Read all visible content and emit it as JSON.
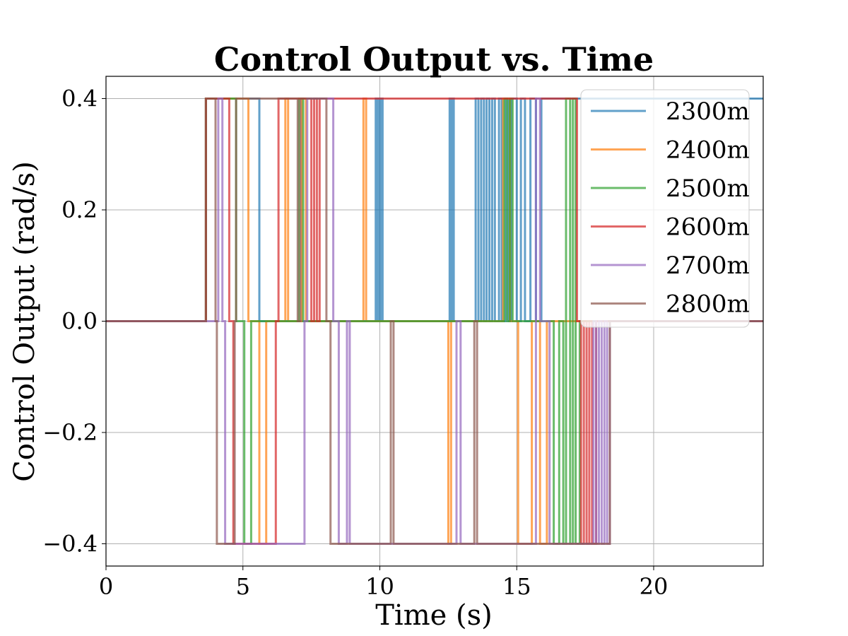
{
  "chart_data": {
    "type": "line",
    "title": "Control Output vs. Time",
    "xlabel": "Time (s)",
    "ylabel": "Control Output (rad/s)",
    "xlim": [
      0,
      24
    ],
    "ylim": [
      -0.44,
      0.44
    ],
    "xticks": [
      0,
      5,
      10,
      15,
      20
    ],
    "xtick_labels": [
      "0",
      "5",
      "10",
      "15",
      "20"
    ],
    "yticks": [
      -0.4,
      -0.2,
      0.0,
      0.2,
      0.4
    ],
    "ytick_labels": [
      "−0.4",
      "−0.2",
      "0.0",
      "0.2",
      "0.4"
    ],
    "grid": true,
    "legend_position": "top-right",
    "series": [
      {
        "name": "2300m",
        "color": "#1f77b4",
        "x": [
          0,
          3.65,
          3.65,
          5.6,
          5.6,
          9.85,
          9.85,
          9.9,
          9.9,
          9.95,
          9.95,
          10.0,
          10.0,
          10.05,
          10.05,
          10.1,
          10.1,
          12.55,
          12.55,
          12.6,
          12.6,
          12.65,
          12.65,
          12.7,
          12.7,
          13.5,
          13.5,
          13.6,
          13.6,
          13.7,
          13.7,
          13.8,
          13.8,
          13.9,
          13.9,
          14.0,
          14.0,
          14.1,
          14.1,
          14.2,
          14.2,
          14.35,
          14.35,
          14.45,
          14.45,
          14.6,
          14.6,
          14.7,
          14.7,
          14.8,
          14.8,
          15.0,
          15.0,
          15.15,
          15.15,
          15.3,
          15.3,
          15.5,
          15.5,
          15.7,
          15.7,
          15.9,
          15.9,
          24
        ],
        "y": [
          0,
          0,
          0.4,
          0.4,
          0,
          0,
          0.4,
          0.4,
          0,
          0,
          0.4,
          0.4,
          0,
          0,
          0.4,
          0.4,
          0,
          0,
          0.4,
          0.4,
          0,
          0,
          0.4,
          0.4,
          0,
          0,
          0.4,
          0.4,
          0,
          0,
          0.4,
          0.4,
          0,
          0,
          0.4,
          0.4,
          0,
          0,
          0.4,
          0.4,
          0,
          0,
          0.4,
          0.4,
          0,
          0,
          0.4,
          0.4,
          0,
          0,
          0.4,
          0.4,
          0,
          0,
          0.4,
          0.4,
          0,
          0,
          0.4,
          0.4,
          0,
          0,
          0.4,
          0.4
        ]
      },
      {
        "name": "2400m",
        "color": "#ff7f0e",
        "x": [
          0,
          3.65,
          3.65,
          5.2,
          5.2,
          5.6,
          5.6,
          5.85,
          5.85,
          6.55,
          6.55,
          6.65,
          6.65,
          7.15,
          7.15,
          7.3,
          7.3,
          9.4,
          9.4,
          9.5,
          9.5,
          12.5,
          12.5,
          12.6,
          12.6,
          14.5,
          14.5,
          14.75,
          14.75,
          15.05,
          15.05,
          15.55,
          15.55,
          15.85,
          15.85,
          16.1,
          16.1,
          16.2,
          16.2,
          24
        ],
        "y": [
          0,
          0,
          0.4,
          0.4,
          0,
          0,
          -0.4,
          -0.4,
          0,
          0,
          0.4,
          0.4,
          0,
          0,
          0.4,
          0.4,
          0,
          0,
          0.4,
          0.4,
          0,
          0,
          -0.4,
          -0.4,
          0,
          0,
          0.4,
          0.4,
          0,
          0,
          -0.4,
          -0.4,
          0,
          0,
          -0.4,
          -0.4,
          0,
          0,
          0,
          0
        ]
      },
      {
        "name": "2500m",
        "color": "#2ca02c",
        "x": [
          0,
          3.65,
          3.65,
          4.75,
          4.75,
          5.05,
          5.05,
          5.3,
          5.3,
          7.05,
          7.05,
          7.2,
          7.2,
          14.55,
          14.55,
          14.65,
          14.65,
          14.75,
          14.75,
          14.85,
          14.85,
          16.35,
          16.35,
          16.55,
          16.55,
          16.7,
          16.7,
          16.8,
          16.8,
          16.85,
          16.85,
          16.95,
          16.95,
          17.05,
          17.05,
          17.15,
          17.15,
          17.3,
          17.3,
          24
        ],
        "y": [
          0,
          0,
          0.4,
          0.4,
          0,
          0,
          -0.4,
          -0.4,
          0,
          0,
          0.4,
          0.4,
          0,
          0,
          0.4,
          0.4,
          0,
          0,
          0.4,
          0.4,
          0,
          0,
          -0.4,
          -0.4,
          0,
          0,
          -0.4,
          -0.4,
          0.4,
          0.4,
          0.4,
          0.4,
          -0.4,
          -0.4,
          0.4,
          0.4,
          -0.4,
          -0.4,
          0,
          0
        ]
      },
      {
        "name": "2600m",
        "color": "#d62728",
        "x": [
          0,
          3.65,
          3.65,
          4.5,
          4.5,
          4.65,
          4.65,
          6.2,
          6.2,
          6.3,
          6.3,
          7.5,
          7.5,
          7.6,
          7.6,
          7.7,
          7.7,
          7.8,
          7.8,
          17.2,
          17.2,
          17.35,
          17.35,
          17.45,
          17.45,
          17.55,
          17.55,
          17.65,
          17.65,
          17.75,
          17.75,
          17.9,
          17.9,
          24
        ],
        "y": [
          0,
          0,
          0.4,
          0.4,
          0,
          0,
          -0.4,
          -0.4,
          0,
          0,
          0.4,
          0.4,
          0,
          0,
          0.4,
          0.4,
          0,
          0,
          0.4,
          0.4,
          0,
          0,
          -0.4,
          -0.4,
          0,
          0,
          -0.4,
          -0.4,
          0,
          0,
          -0.4,
          -0.4,
          0,
          0
        ]
      },
      {
        "name": "2700m",
        "color": "#9467bd",
        "x": [
          0,
          4.1,
          4.1,
          4.25,
          4.25,
          4.35,
          4.35,
          7.25,
          7.25,
          7.35,
          7.35,
          8.3,
          8.3,
          8.5,
          8.5,
          8.8,
          8.8,
          8.9,
          8.9,
          12.8,
          12.8,
          12.95,
          12.95,
          15.7,
          15.7,
          15.85,
          15.85,
          16.2,
          16.2,
          16.35,
          16.35,
          17.8,
          17.8,
          17.9,
          17.9,
          18.0,
          18.0,
          18.1,
          18.1,
          18.2,
          18.2,
          18.3,
          18.3,
          18.4,
          18.4,
          18.5,
          18.5,
          24
        ],
        "y": [
          0,
          0,
          0.4,
          0.4,
          0,
          0,
          -0.4,
          -0.4,
          0,
          0,
          0.4,
          0.4,
          0,
          0,
          -0.4,
          -0.4,
          0,
          0,
          -0.4,
          -0.4,
          0,
          0,
          -0.4,
          -0.4,
          0.4,
          0.4,
          0,
          0,
          -0.4,
          -0.4,
          -0.4,
          -0.4,
          0,
          0,
          -0.4,
          -0.4,
          0,
          0,
          -0.4,
          -0.4,
          0,
          0,
          -0.4,
          -0.4,
          0,
          0,
          0,
          0
        ]
      },
      {
        "name": "2800m",
        "color": "#8c564b",
        "x": [
          0,
          3.65,
          3.65,
          4.0,
          4.0,
          4.05,
          4.05,
          4.7,
          4.7,
          4.75,
          4.75,
          7.0,
          7.0,
          7.1,
          7.1,
          8.05,
          8.05,
          8.2,
          8.2,
          10.4,
          10.4,
          10.5,
          10.5,
          13.45,
          13.45,
          13.55,
          13.55,
          14.7,
          14.7,
          17.4,
          17.4,
          18.4,
          18.4,
          19.0,
          19.0,
          24
        ],
        "y": [
          0,
          0,
          0.4,
          0.4,
          0,
          0,
          -0.4,
          -0.4,
          0,
          0,
          0.4,
          0.4,
          0,
          0,
          0.4,
          0.4,
          0,
          0,
          -0.4,
          -0.4,
          0,
          0,
          -0.4,
          -0.4,
          0,
          0,
          -0.4,
          -0.4,
          -0.4,
          -0.4,
          -0.4,
          -0.4,
          0,
          0,
          0,
          0
        ]
      }
    ]
  }
}
